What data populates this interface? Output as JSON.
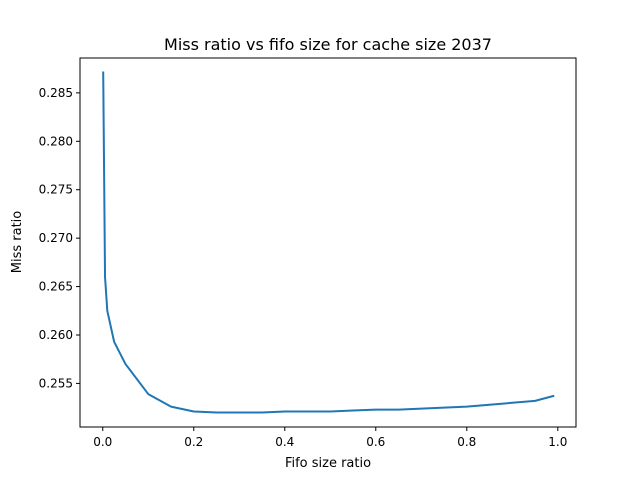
{
  "chart_data": {
    "type": "line",
    "title": "Miss ratio vs fifo size for cache size 2037",
    "xlabel": "Fifo size ratio",
    "ylabel": "Miss ratio",
    "xlim": [
      -0.05,
      1.04
    ],
    "ylim": [
      0.2505,
      0.2886
    ],
    "grid": false,
    "x_ticks": [
      {
        "value": 0.0,
        "label": "0.0"
      },
      {
        "value": 0.2,
        "label": "0.2"
      },
      {
        "value": 0.4,
        "label": "0.4"
      },
      {
        "value": 0.6,
        "label": "0.6"
      },
      {
        "value": 0.8,
        "label": "0.8"
      },
      {
        "value": 1.0,
        "label": "1.0"
      }
    ],
    "y_ticks": [
      {
        "value": 0.255,
        "label": "0.255"
      },
      {
        "value": 0.26,
        "label": "0.260"
      },
      {
        "value": 0.265,
        "label": "0.265"
      },
      {
        "value": 0.27,
        "label": "0.270"
      },
      {
        "value": 0.275,
        "label": "0.275"
      },
      {
        "value": 0.28,
        "label": "0.280"
      },
      {
        "value": 0.285,
        "label": "0.285"
      }
    ],
    "series": [
      {
        "color": "#1f77b4",
        "x": [
          0.001,
          0.005,
          0.01,
          0.025,
          0.05,
          0.1,
          0.15,
          0.2,
          0.25,
          0.3,
          0.35,
          0.4,
          0.45,
          0.5,
          0.55,
          0.6,
          0.65,
          0.7,
          0.75,
          0.8,
          0.85,
          0.9,
          0.95,
          0.99
        ],
        "y": [
          0.2871,
          0.266,
          0.2625,
          0.2593,
          0.257,
          0.2539,
          0.2526,
          0.2521,
          0.252,
          0.252,
          0.252,
          0.2521,
          0.2521,
          0.2521,
          0.2522,
          0.2523,
          0.2523,
          0.2524,
          0.2525,
          0.2526,
          0.2528,
          0.253,
          0.2532,
          0.2537
        ]
      }
    ]
  }
}
